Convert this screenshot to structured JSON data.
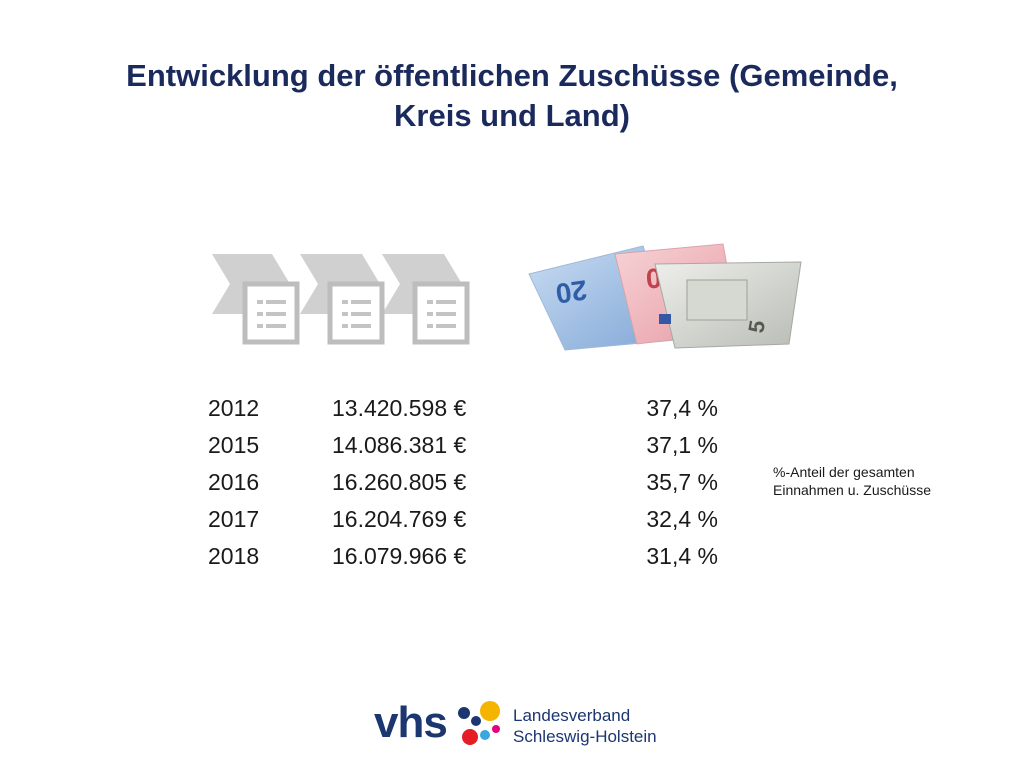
{
  "title": {
    "line1": "Entwicklung der öffentlichen Zuschüsse (Gemeinde,",
    "line2": "Kreis und Land)"
  },
  "rows": [
    {
      "year": "2012",
      "amount": "13.420.598 €",
      "percent": "37,4 %"
    },
    {
      "year": "2015",
      "amount": "14.086.381 €",
      "percent": "37,1 %"
    },
    {
      "year": "2016",
      "amount": "16.260.805 €",
      "percent": "35,7 %"
    },
    {
      "year": "2017",
      "amount": "16.204.769 €",
      "percent": "32,4 %"
    },
    {
      "year": "2018",
      "amount": "16.079.966 €",
      "percent": "31,4 %"
    }
  ],
  "side_note": {
    "line1": "%-Anteil der gesamten",
    "line2": "Einnahmen u. Zuschüsse"
  },
  "logo": {
    "brand": "vhs",
    "org_line1": "Landesverband",
    "org_line2": "Schleswig-Holstein"
  },
  "banknotes": {
    "note_20": "20",
    "note_10": "10",
    "note_5": "5"
  },
  "colors": {
    "title": "#1b2a5c",
    "brand_blue": "#1b3670",
    "logo_dots": [
      "#f5b400",
      "#e31e24",
      "#1b3670",
      "#3aa7e0",
      "#e4007c"
    ]
  }
}
